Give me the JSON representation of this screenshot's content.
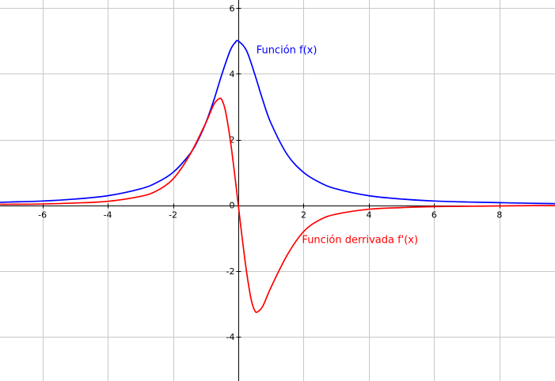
{
  "chart_data": {
    "type": "line",
    "title": "",
    "xlabel": "",
    "ylabel": "",
    "xlim": [
      -7.3,
      9.7
    ],
    "ylim": [
      -5.35,
      6.25
    ],
    "grid": true,
    "x_ticks": [
      -6,
      -4,
      -2,
      2,
      4,
      6,
      8
    ],
    "y_ticks": [
      -4,
      -2,
      0,
      2,
      4,
      6
    ],
    "x_tick_labels": [
      "-6",
      "-4",
      "-2",
      "2",
      "4",
      "6",
      "8"
    ],
    "y_tick_labels": [
      "-4",
      "-2",
      "0",
      "2",
      "4",
      "6"
    ],
    "series": [
      {
        "name": "Función f(x)",
        "color": "#0000ff",
        "x": [
          -7.3,
          -7,
          -6,
          -5,
          -4,
          -3,
          -2.5,
          -2,
          -1.5,
          -1.25,
          -1,
          -0.75,
          -0.5,
          -0.25,
          -0.1,
          0,
          0.25,
          0.5,
          0.75,
          1,
          1.5,
          2,
          2.5,
          3,
          4,
          5,
          6,
          7,
          8,
          9,
          9.7
        ],
        "y": [
          0.09,
          0.1,
          0.13,
          0.19,
          0.29,
          0.5,
          0.69,
          1.0,
          1.54,
          1.95,
          2.5,
          3.2,
          4.0,
          4.71,
          4.95,
          5.0,
          4.71,
          4.0,
          3.2,
          2.5,
          1.54,
          1.0,
          0.69,
          0.5,
          0.29,
          0.19,
          0.13,
          0.1,
          0.08,
          0.06,
          0.05
        ]
      },
      {
        "name": "Función derrivada f'(x)",
        "color": "#ff0000",
        "x": [
          -7.3,
          -7,
          -6,
          -5,
          -4,
          -3,
          -2.5,
          -2,
          -1.5,
          -1,
          -0.75,
          -0.58,
          -0.5,
          -0.4,
          -0.3,
          -0.2,
          -0.1,
          0,
          0.1,
          0.2,
          0.3,
          0.4,
          0.5,
          0.58,
          0.75,
          1,
          1.5,
          2,
          2.5,
          3,
          4,
          5,
          6,
          7,
          8,
          9,
          9.7
        ],
        "y": [
          0.03,
          0.03,
          0.04,
          0.07,
          0.12,
          0.27,
          0.44,
          0.8,
          1.51,
          2.5,
          3.07,
          3.25,
          3.2,
          2.9,
          2.34,
          1.65,
          0.85,
          0.0,
          -0.85,
          -1.65,
          -2.34,
          -2.9,
          -3.2,
          -3.25,
          -3.07,
          -2.5,
          -1.51,
          -0.8,
          -0.44,
          -0.27,
          -0.12,
          -0.07,
          -0.04,
          -0.03,
          -0.02,
          -0.01,
          -0.01
        ]
      }
    ],
    "annotations": [
      {
        "text": "Función f(x)",
        "color": "#0000ff",
        "x": 0.55,
        "y": 4.62
      },
      {
        "text": "Función derrivada f'(x)",
        "color": "#ff0000",
        "x": 1.95,
        "y": -1.15
      }
    ]
  }
}
